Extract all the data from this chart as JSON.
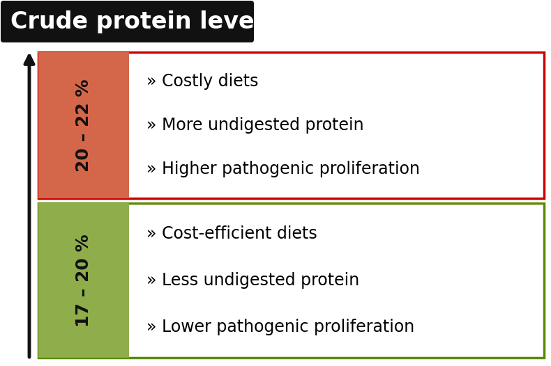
{
  "title": "Crude protein level",
  "title_bg_color": "#111111",
  "title_text_color": "#ffffff",
  "title_fontsize": 24,
  "arrow_color": "#111111",
  "top_box": {
    "label": "20 – 22 %",
    "label_bg_color": "#d4674a",
    "box_border_color": "#cc0000",
    "box_fill_color": "#ffffff",
    "items": [
      "» Costly diets",
      "» More undigested protein",
      "» Higher pathogenic proliferation"
    ]
  },
  "bottom_box": {
    "label": "17 – 20 %",
    "label_bg_color": "#8fad4a",
    "box_border_color": "#5a8a00",
    "box_fill_color": "#ffffff",
    "items": [
      "» Cost-efficient diets",
      "» Less undigested protein",
      "» Lower pathogenic proliferation"
    ]
  },
  "label_fontsize": 18,
  "item_fontsize": 17,
  "figsize": [
    7.9,
    5.26
  ],
  "dpi": 100
}
